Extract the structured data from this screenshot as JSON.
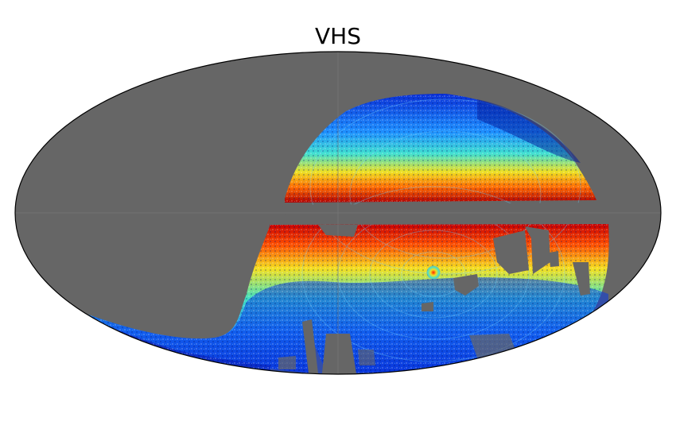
{
  "title": "VHS",
  "projection": "mollweide",
  "colors": {
    "background": "#ffffff",
    "no_data": "#666666",
    "outline": "#000000",
    "grid": "#7a7a7a",
    "colormap": "jet"
  }
}
